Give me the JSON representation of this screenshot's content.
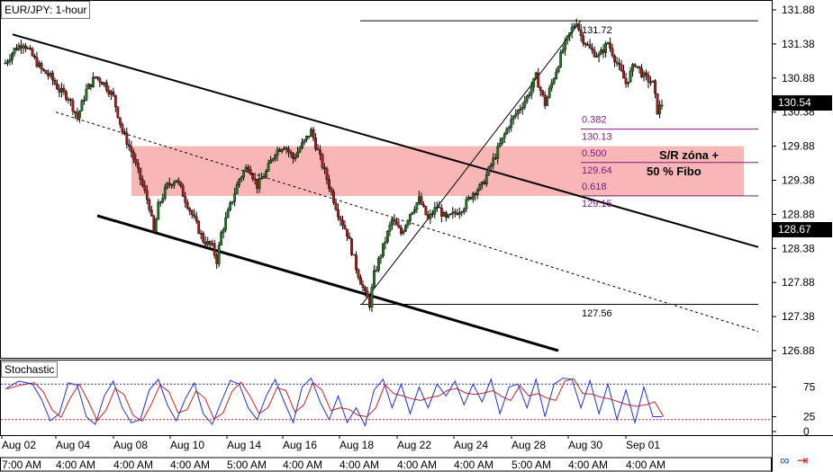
{
  "chart": {
    "title": "EUR/JPY: 1-hour",
    "oscillator_title": "Stochastic",
    "annotation_lines": [
      "S/R zóna +",
      "50 % Fibo"
    ],
    "current_price": "130.54",
    "secondary_price": "128.67",
    "swing_high_label": "131.72",
    "swing_low_label": "127.56",
    "nav_icons": [
      "link-icon",
      "arrow-right-icon"
    ]
  },
  "chart_data": {
    "type": "candlestick",
    "price_axis": {
      "ticks": [
        "131.88",
        "131.38",
        "130.88",
        "130.38",
        "129.88",
        "129.38",
        "128.88",
        "128.38",
        "127.88",
        "127.38",
        "126.88"
      ],
      "ylim": [
        126.76,
        131.98
      ]
    },
    "oscillator_axis": {
      "ticks": [
        "75",
        "25",
        "0"
      ],
      "ylim": [
        0,
        100
      ],
      "overbought": 80,
      "oversold": 20
    },
    "x_labels": {
      "dates": [
        "Aug 02",
        "Aug 04",
        "Aug 08",
        "Aug 10",
        "Aug 14",
        "Aug 16",
        "Aug 18",
        "Aug 22",
        "Aug 24",
        "Aug 28",
        "Aug 30",
        "Sep 01"
      ],
      "times": [
        "7:00 AM",
        "4:00 AM",
        "4:00 AM",
        "4:00 AM",
        "5:00 AM",
        "4:00 AM",
        "4:00 AM",
        "4:00 AM",
        "4:00 AM",
        "5:00 AM",
        "4:00 AM",
        "4:00 AM"
      ]
    },
    "fibonacci": [
      {
        "ratio": "0.382",
        "price": "130.13"
      },
      {
        "ratio": "0.500",
        "price": "129.64"
      },
      {
        "ratio": "0.618",
        "price": "129.15"
      }
    ],
    "swing_high": 131.72,
    "swing_low": 127.56,
    "sr_zone": [
      129.15,
      129.88
    ],
    "price_path": [
      [
        0,
        131.1
      ],
      [
        2,
        131.3
      ],
      [
        4,
        131.4
      ],
      [
        6,
        131.2
      ],
      [
        8,
        131.0
      ],
      [
        10,
        130.9
      ],
      [
        12,
        130.7
      ],
      [
        14,
        130.6
      ],
      [
        16,
        130.3
      ],
      [
        18,
        130.7
      ],
      [
        20,
        130.9
      ],
      [
        22,
        130.8
      ],
      [
        24,
        130.6
      ],
      [
        26,
        130.1
      ],
      [
        28,
        129.8
      ],
      [
        30,
        129.4
      ],
      [
        32,
        129.0
      ],
      [
        33,
        128.6
      ],
      [
        34,
        129.0
      ],
      [
        36,
        129.3
      ],
      [
        38,
        129.4
      ],
      [
        40,
        129.1
      ],
      [
        42,
        128.8
      ],
      [
        44,
        128.5
      ],
      [
        46,
        128.4
      ],
      [
        47,
        128.2
      ],
      [
        48,
        128.6
      ],
      [
        50,
        129.0
      ],
      [
        52,
        129.4
      ],
      [
        54,
        129.6
      ],
      [
        56,
        129.3
      ],
      [
        58,
        129.5
      ],
      [
        60,
        129.8
      ],
      [
        62,
        129.9
      ],
      [
        64,
        129.7
      ],
      [
        66,
        129.9
      ],
      [
        68,
        130.1
      ],
      [
        70,
        129.7
      ],
      [
        72,
        129.3
      ],
      [
        74,
        128.9
      ],
      [
        76,
        128.6
      ],
      [
        78,
        128.1
      ],
      [
        80,
        127.7
      ],
      [
        81,
        127.56
      ],
      [
        82,
        128.0
      ],
      [
        84,
        128.4
      ],
      [
        86,
        128.8
      ],
      [
        88,
        128.6
      ],
      [
        90,
        128.9
      ],
      [
        92,
        129.1
      ],
      [
        94,
        128.8
      ],
      [
        96,
        129.0
      ],
      [
        98,
        128.8
      ],
      [
        100,
        128.9
      ],
      [
        102,
        129.0
      ],
      [
        104,
        129.2
      ],
      [
        106,
        129.3
      ],
      [
        108,
        129.6
      ],
      [
        110,
        129.9
      ],
      [
        112,
        130.2
      ],
      [
        114,
        130.4
      ],
      [
        116,
        130.6
      ],
      [
        118,
        130.9
      ],
      [
        120,
        130.5
      ],
      [
        122,
        130.9
      ],
      [
        124,
        131.3
      ],
      [
        126,
        131.6
      ],
      [
        127,
        131.72
      ],
      [
        128,
        131.5
      ],
      [
        130,
        131.3
      ],
      [
        132,
        131.2
      ],
      [
        134,
        131.4
      ],
      [
        136,
        131.1
      ],
      [
        138,
        130.8
      ],
      [
        140,
        131.1
      ],
      [
        142,
        130.9
      ],
      [
        144,
        130.8
      ],
      [
        145,
        130.4
      ],
      [
        146,
        130.5
      ]
    ],
    "stochastic_k": [
      [
        0,
        72
      ],
      [
        3,
        85
      ],
      [
        6,
        80
      ],
      [
        8,
        55
      ],
      [
        10,
        18
      ],
      [
        12,
        30
      ],
      [
        14,
        82
      ],
      [
        16,
        78
      ],
      [
        18,
        25
      ],
      [
        20,
        12
      ],
      [
        22,
        60
      ],
      [
        24,
        85
      ],
      [
        26,
        40
      ],
      [
        28,
        15
      ],
      [
        30,
        20
      ],
      [
        32,
        70
      ],
      [
        34,
        88
      ],
      [
        36,
        45
      ],
      [
        38,
        18
      ],
      [
        40,
        55
      ],
      [
        42,
        82
      ],
      [
        44,
        30
      ],
      [
        46,
        12
      ],
      [
        48,
        50
      ],
      [
        50,
        86
      ],
      [
        52,
        80
      ],
      [
        54,
        40
      ],
      [
        56,
        20
      ],
      [
        58,
        60
      ],
      [
        60,
        88
      ],
      [
        62,
        50
      ],
      [
        64,
        15
      ],
      [
        66,
        75
      ],
      [
        68,
        90
      ],
      [
        70,
        50
      ],
      [
        72,
        20
      ],
      [
        74,
        60
      ],
      [
        76,
        15
      ],
      [
        78,
        40
      ],
      [
        80,
        10
      ],
      [
        82,
        70
      ],
      [
        84,
        88
      ],
      [
        86,
        40
      ],
      [
        88,
        80
      ],
      [
        90,
        30
      ],
      [
        92,
        75
      ],
      [
        94,
        40
      ],
      [
        96,
        80
      ],
      [
        98,
        60
      ],
      [
        100,
        85
      ],
      [
        102,
        45
      ],
      [
        104,
        80
      ],
      [
        106,
        50
      ],
      [
        108,
        88
      ],
      [
        110,
        30
      ],
      [
        112,
        75
      ],
      [
        114,
        80
      ],
      [
        116,
        40
      ],
      [
        118,
        88
      ],
      [
        120,
        25
      ],
      [
        122,
        80
      ],
      [
        124,
        90
      ],
      [
        126,
        88
      ],
      [
        128,
        40
      ],
      [
        130,
        86
      ],
      [
        132,
        30
      ],
      [
        134,
        80
      ],
      [
        136,
        20
      ],
      [
        138,
        70
      ],
      [
        140,
        15
      ],
      [
        142,
        75
      ],
      [
        144,
        25
      ],
      [
        146,
        25
      ]
    ],
    "grid": false,
    "legend": "none"
  },
  "colors": {
    "up_candle": "#1e7a1e",
    "down_candle": "#b01818",
    "wick": "#000000",
    "sr_zone_fill": "#f7a9a9",
    "fib_text": "#7d1a7d",
    "stoch_k": "#2233cc",
    "stoch_d": "#cc2222"
  }
}
